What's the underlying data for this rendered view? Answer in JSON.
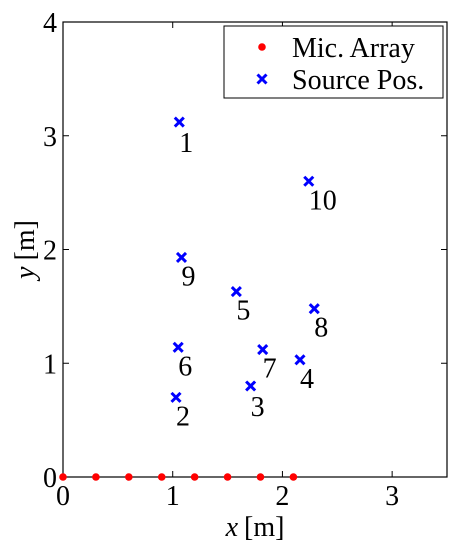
{
  "chart_data": {
    "type": "scatter",
    "xlabel_var": "x",
    "xlabel_unit": "[m]",
    "ylabel_var": "y",
    "ylabel_unit": "[m]",
    "xlim": [
      0,
      3.5
    ],
    "ylim": [
      0,
      4
    ],
    "xticks": [
      0,
      1,
      2,
      3
    ],
    "yticks": [
      0,
      1,
      2,
      3,
      4
    ],
    "grid": false,
    "legend_position": "top-right",
    "series": [
      {
        "name": "Mic. Array",
        "marker": "dot",
        "color": "#ff0000",
        "points": [
          {
            "x": 0.0,
            "y": 0
          },
          {
            "x": 0.3,
            "y": 0
          },
          {
            "x": 0.6,
            "y": 0
          },
          {
            "x": 0.9,
            "y": 0
          },
          {
            "x": 1.2,
            "y": 0
          },
          {
            "x": 1.5,
            "y": 0
          },
          {
            "x": 1.8,
            "y": 0
          },
          {
            "x": 2.1,
            "y": 0
          }
        ]
      },
      {
        "name": "Source Pos.",
        "marker": "cross",
        "color": "#0000ff",
        "points": [
          {
            "x": 1.06,
            "y": 3.12,
            "label": "1"
          },
          {
            "x": 1.03,
            "y": 0.7,
            "label": "2"
          },
          {
            "x": 1.71,
            "y": 0.8,
            "label": "3"
          },
          {
            "x": 2.16,
            "y": 1.03,
            "label": "4"
          },
          {
            "x": 1.58,
            "y": 1.63,
            "label": "5"
          },
          {
            "x": 1.05,
            "y": 1.14,
            "label": "6"
          },
          {
            "x": 1.82,
            "y": 1.12,
            "label": "7"
          },
          {
            "x": 2.29,
            "y": 1.48,
            "label": "8"
          },
          {
            "x": 1.08,
            "y": 1.93,
            "label": "9"
          },
          {
            "x": 2.24,
            "y": 2.6,
            "label": "10"
          }
        ]
      }
    ]
  }
}
